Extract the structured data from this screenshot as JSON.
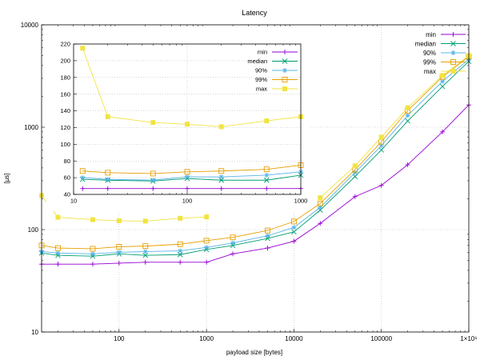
{
  "chart_data": [
    {
      "type": "line",
      "title": "Latency",
      "xlabel": "payload size [bytes]",
      "ylabel": "[µs]",
      "xscale": "log",
      "yscale": "log",
      "xlim": [
        13,
        1000000
      ],
      "ylim": [
        10,
        10000
      ],
      "grid": true,
      "legend": "top-right",
      "x_ticks": [
        {
          "value": 100,
          "label": "100"
        },
        {
          "value": 1000,
          "label": "1000"
        },
        {
          "value": 10000,
          "label": "10000"
        },
        {
          "value": 100000,
          "label": "100000"
        },
        {
          "value": 1000000,
          "label": "1×10⁶"
        }
      ],
      "y_ticks": [
        {
          "value": 10,
          "label": "10"
        },
        {
          "value": 100,
          "label": "100"
        },
        {
          "value": 1000,
          "label": "1000"
        },
        {
          "value": 10000,
          "label": "10000"
        }
      ],
      "x": [
        13,
        20,
        50,
        100,
        200,
        500,
        1000,
        2000,
        5000,
        10000,
        20000,
        50000,
        100000,
        200000,
        500000,
        1000000
      ],
      "series": [
        {
          "name": "min",
          "marker": "plus",
          "color": "#9400d3",
          "values": [
            46,
            46,
            46,
            47,
            48,
            48,
            48,
            58,
            66,
            77,
            115,
            210,
            270,
            430,
            900,
            1650
          ]
        },
        {
          "name": "median",
          "marker": "x",
          "color": "#009e73",
          "values": [
            59,
            56,
            55,
            58,
            56,
            57,
            64,
            70,
            82,
            95,
            155,
            330,
            600,
            1150,
            2500,
            4400
          ]
        },
        {
          "name": "90%",
          "marker": "star",
          "color": "#56b4e9",
          "values": [
            61,
            59,
            58,
            60,
            61,
            62,
            67,
            74,
            87,
            105,
            165,
            360,
            660,
            1300,
            2800,
            4600
          ]
        },
        {
          "name": "99%",
          "marker": "open-square",
          "color": "#e69f00",
          "values": [
            70,
            66,
            65,
            68,
            69,
            72,
            78,
            84,
            98,
            120,
            180,
            385,
            720,
            1450,
            3100,
            4900
          ]
        },
        {
          "name": "max",
          "marker": "filled-square",
          "color": "#f0e442",
          "values": [
            215,
            132,
            125,
            122,
            121,
            129,
            133,
            null,
            null,
            null,
            205,
            420,
            800,
            1550,
            3200,
            5000
          ]
        }
      ]
    },
    {
      "type": "line",
      "role": "inset",
      "xscale": "log",
      "xlim": [
        10,
        1000
      ],
      "ylim": [
        40,
        220
      ],
      "legend": "top-right",
      "x_ticks": [
        {
          "value": 10,
          "label": "10"
        },
        {
          "value": 100,
          "label": "100"
        },
        {
          "value": 1000,
          "label": "1000"
        }
      ],
      "y_ticks": [
        {
          "value": 40,
          "label": "40"
        },
        {
          "value": 60,
          "label": "60"
        },
        {
          "value": 80,
          "label": "80"
        },
        {
          "value": 100,
          "label": "100"
        },
        {
          "value": 120,
          "label": "120"
        },
        {
          "value": 140,
          "label": "140"
        },
        {
          "value": 160,
          "label": "160"
        },
        {
          "value": 180,
          "label": "180"
        },
        {
          "value": 200,
          "label": "200"
        },
        {
          "value": 220,
          "label": "220"
        }
      ],
      "x": [
        12,
        20,
        50,
        100,
        200,
        500,
        1000
      ],
      "series": [
        {
          "name": "min",
          "marker": "plus",
          "color": "#9400d3",
          "values": [
            47,
            47,
            47,
            47,
            47,
            47,
            47
          ]
        },
        {
          "name": "median",
          "marker": "x",
          "color": "#009e73",
          "values": [
            58,
            57,
            56,
            59,
            57,
            57,
            63
          ]
        },
        {
          "name": "90%",
          "marker": "star",
          "color": "#56b4e9",
          "values": [
            60,
            58,
            57,
            61,
            61,
            63,
            67
          ]
        },
        {
          "name": "99%",
          "marker": "open-square",
          "color": "#e69f00",
          "values": [
            68,
            66,
            65,
            67,
            68,
            70,
            75
          ]
        },
        {
          "name": "max",
          "marker": "filled-square",
          "color": "#f0e442",
          "values": [
            215,
            133,
            126,
            124,
            121,
            128,
            133
          ]
        }
      ]
    }
  ]
}
